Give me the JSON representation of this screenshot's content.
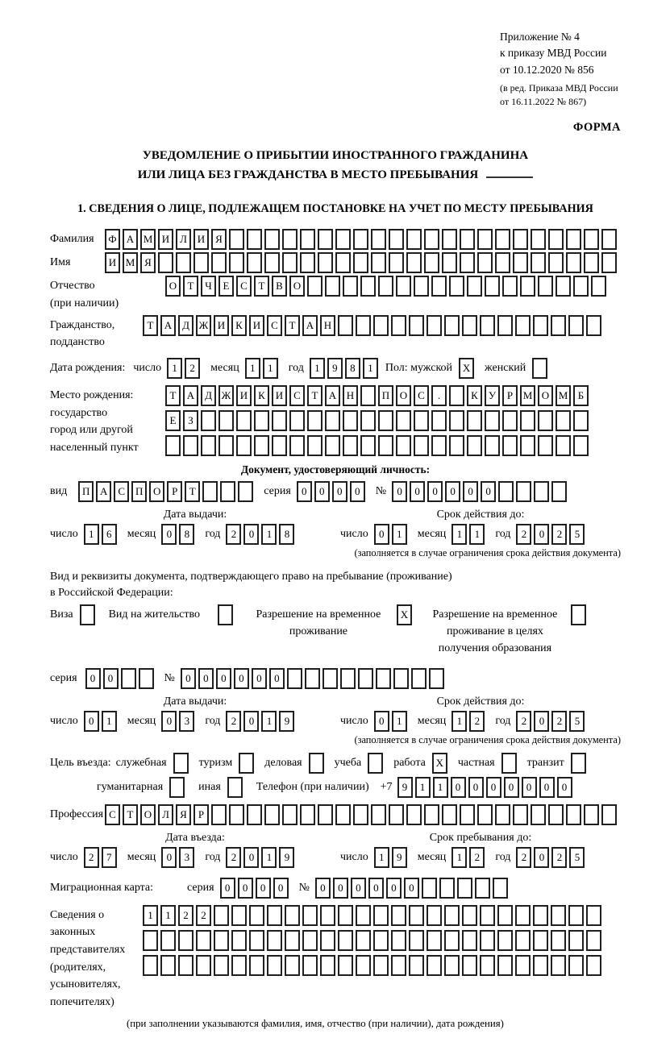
{
  "header": {
    "annex_lines": [
      "Приложение № 4",
      "к приказу МВД России",
      "от 10.12.2020 № 856"
    ],
    "amend_lines": [
      "(в ред. Приказа МВД России",
      "от 16.11.2022 № 867)"
    ],
    "form_label": "ФОРМА"
  },
  "title": {
    "line1": "УВЕДОМЛЕНИЕ О ПРИБЫТИИ ИНОСТРАННОГО ГРАЖДАНИНА",
    "line2": "ИЛИ ЛИЦА БЕЗ ГРАЖДАНСТВА В МЕСТО ПРЕБЫВАНИЯ"
  },
  "section1_heading": "1. СВЕДЕНИЯ О ЛИЦЕ, ПОДЛЕЖАЩЕМ ПОСТАНОВКЕ НА УЧЕТ ПО МЕСТУ ПРЕБЫВАНИЯ",
  "surname": {
    "label": "Фамилия",
    "cells": {
      "v": "ФАМИЛИЯ",
      "n": 29
    }
  },
  "firstname": {
    "label": "Имя",
    "cells": {
      "v": "ИМЯ",
      "n": 29
    }
  },
  "patronymic": {
    "label": "Отчество",
    "label2": "(при наличии)",
    "cells": {
      "v": "ОТЧЕСТВО",
      "n": 25
    }
  },
  "citizenship": {
    "label": "Гражданство,",
    "label2": "подданство",
    "cells": {
      "v": "ТАДЖИКИСТАН",
      "n": 26
    }
  },
  "birth_date": {
    "label": "Дата рождения:",
    "day_label": "число",
    "day": {
      "v": "12",
      "n": 2
    },
    "month_label": "месяц",
    "month": {
      "v": "11",
      "n": 2
    },
    "year_label": "год",
    "year": {
      "v": "1981",
      "n": 4
    }
  },
  "sex": {
    "label": "Пол: мужской",
    "male": {
      "v": "X",
      "n": 1
    },
    "female_label": "женский",
    "female": {
      "v": "",
      "n": 1
    }
  },
  "birth_place": {
    "label_lines": [
      "Место рождения:",
      "государство",
      "город или другой",
      "населенный пункт"
    ],
    "row1": {
      "v": "ТАДЖИКИСТАН ПОС. КУРМОМБ",
      "n": 24
    },
    "row2": {
      "v": "ЕЗ",
      "n": 24
    },
    "row3": {
      "v": "",
      "n": 24
    }
  },
  "identity_doc": {
    "heading": "Документ, удостоверяющий личность:",
    "kind_label": "вид",
    "kind": {
      "v": "ПАСПОРТ",
      "n": 10
    },
    "series_label": "серия",
    "series": {
      "v": "0000",
      "n": 4
    },
    "number_label": "№",
    "number": {
      "v": "000000",
      "n": 10
    },
    "issue_title": "Дата выдачи:",
    "issue": {
      "day_label": "число",
      "day": {
        "v": "16",
        "n": 2
      },
      "month_label": "месяц",
      "month": {
        "v": "08",
        "n": 2
      },
      "year_label": "год",
      "year": {
        "v": "2018",
        "n": 4
      }
    },
    "expiry_title": "Срок действия до:",
    "expiry": {
      "day_label": "число",
      "day": {
        "v": "01",
        "n": 2
      },
      "month_label": "месяц",
      "month": {
        "v": "11",
        "n": 2
      },
      "year_label": "год",
      "year": {
        "v": "2025",
        "n": 4
      }
    },
    "note": "(заполняется в случае ограничения срока действия документа)"
  },
  "permit_doc": {
    "line1": "Вид и реквизиты документа, подтверждающего право на пребывание (проживание)",
    "line2": "в Российской Федерации:",
    "opt_visa_label": "Виза",
    "opt_visa": {
      "v": "",
      "n": 1
    },
    "opt_residence_label": "Вид на жительство",
    "opt_residence": {
      "v": "",
      "n": 1
    },
    "opt_temp_label": "Разрешение на временное проживание",
    "opt_temp": {
      "v": "X",
      "n": 1
    },
    "opt_edu_label": "Разрешение на временное проживание в целях получения образования",
    "opt_edu": {
      "v": "",
      "n": 1
    },
    "series_label": "серия",
    "series": {
      "v": "00",
      "n": 4
    },
    "number_label": "№",
    "number": {
      "v": "000000",
      "n": 15
    },
    "issue_title": "Дата выдачи:",
    "issue": {
      "day_label": "число",
      "day": {
        "v": "01",
        "n": 2
      },
      "month_label": "месяц",
      "month": {
        "v": "03",
        "n": 2
      },
      "year_label": "год",
      "year": {
        "v": "2019",
        "n": 4
      }
    },
    "expiry_title": "Срок действия до:",
    "expiry": {
      "day_label": "число",
      "day": {
        "v": "01",
        "n": 2
      },
      "month_label": "месяц",
      "month": {
        "v": "12",
        "n": 2
      },
      "year_label": "год",
      "year": {
        "v": "2025",
        "n": 4
      }
    },
    "note": "(заполняется в случае ограничения срока действия документа)"
  },
  "purpose": {
    "label": "Цель въезда:",
    "opt_sluzhebnaya_label": "служебная",
    "opt_sluzhebnaya": {
      "v": "",
      "n": 1
    },
    "opt_turizm_label": "туризм",
    "opt_turizm": {
      "v": "",
      "n": 1
    },
    "opt_delovaya_label": "деловая",
    "opt_delovaya": {
      "v": "",
      "n": 1
    },
    "opt_ucheba_label": "учеба",
    "opt_ucheba": {
      "v": "",
      "n": 1
    },
    "opt_rabota_label": "работа",
    "opt_rabota": {
      "v": "X",
      "n": 1
    },
    "opt_chastnaya_label": "частная",
    "opt_chastnaya": {
      "v": "",
      "n": 1
    },
    "opt_tranzit_label": "транзит",
    "opt_tranzit": {
      "v": "",
      "n": 1
    },
    "opt_gumanitarnaya_label": "гуманитарная",
    "opt_gumanitarnaya": {
      "v": "",
      "n": 1
    },
    "opt_inaya_label": "иная",
    "opt_inaya": {
      "v": "",
      "n": 1
    },
    "phone_label": "Телефон (при наличии)",
    "phone_prefix": "+7",
    "phone": {
      "v": "9110000000",
      "n": 10
    }
  },
  "profession": {
    "label": "Профессия",
    "cells": {
      "v": "СТОЛЯР",
      "n": 29
    }
  },
  "entry": {
    "entry_title": "Дата въезда:",
    "entry_date": {
      "day_label": "число",
      "day": {
        "v": "27",
        "n": 2
      },
      "month_label": "месяц",
      "month": {
        "v": "03",
        "n": 2
      },
      "year_label": "год",
      "year": {
        "v": "2019",
        "n": 4
      }
    },
    "stay_title": "Срок пребывания до:",
    "stay_until": {
      "day_label": "число",
      "day": {
        "v": "19",
        "n": 2
      },
      "month_label": "месяц",
      "month": {
        "v": "12",
        "n": 2
      },
      "year_label": "год",
      "year": {
        "v": "2025",
        "n": 4
      }
    }
  },
  "migration_card": {
    "label": "Миграционная карта:",
    "series_label": "серия",
    "series": {
      "v": "0000",
      "n": 4
    },
    "number_label": "№",
    "number": {
      "v": "000000",
      "n": 11
    }
  },
  "representatives": {
    "label_lines": [
      "Сведения о",
      "законных",
      "представителях",
      "(родителях,",
      "усыновителях,",
      "попечителях)"
    ],
    "row1": {
      "v": "1122",
      "n": 26
    },
    "row2": {
      "v": "",
      "n": 26
    },
    "row3": {
      "v": "",
      "n": 26
    },
    "note": "(при заполнении указываются фамилия, имя, отчество (при наличии), дата рождения)"
  }
}
